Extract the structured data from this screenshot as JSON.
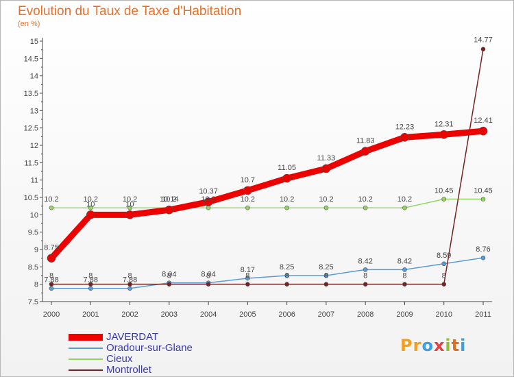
{
  "chart_data": {
    "type": "line",
    "title": "Evolution du Taux de Taxe d'Habitation",
    "subtitle": "(en %)",
    "x": [
      "2000",
      "2001",
      "2002",
      "2003",
      "2004",
      "2005",
      "2006",
      "2007",
      "2008",
      "2009",
      "2010",
      "2011"
    ],
    "yticks": [
      "7.5",
      "8",
      "8.5",
      "9",
      "9.5",
      "10",
      "10.5",
      "11",
      "11.5",
      "12",
      "12.5",
      "13",
      "13.5",
      "14",
      "14.5",
      "15"
    ],
    "ylim": [
      7.5,
      15
    ],
    "grid": false,
    "legend": "bottom-left",
    "series": [
      {
        "name": "JAVERDAT",
        "color": "#ee0000",
        "values": [
          8.75,
          10.0,
          10.0,
          10.14,
          10.37,
          10.7,
          11.05,
          11.33,
          11.83,
          12.23,
          12.31,
          12.41
        ],
        "labels": [
          "8.75",
          "10",
          "10",
          "10.14",
          "10.37",
          "10.7",
          "11.05",
          "11.33",
          "11.83",
          "12.23",
          "12.31",
          "12.41"
        ]
      },
      {
        "name": "Oradour-sur-Glane",
        "color": "#5b9bd5",
        "values": [
          7.88,
          7.88,
          7.88,
          8.04,
          8.04,
          8.17,
          8.25,
          8.25,
          8.42,
          8.42,
          8.59,
          8.76
        ],
        "labels": [
          "7.88",
          "7.88",
          "7.88",
          "8.04",
          "8.04",
          "8.17",
          "8.25",
          "8.25",
          "8.42",
          "8.42",
          "8.59",
          "8.76"
        ]
      },
      {
        "name": "Cieux",
        "color": "#8fd65a",
        "values": [
          10.2,
          10.2,
          10.2,
          10.2,
          10.2,
          10.2,
          10.2,
          10.2,
          10.2,
          10.2,
          10.45,
          10.45
        ],
        "labels": [
          "10.2",
          "10.2",
          "10.2",
          "10.2",
          "10.2",
          "10.2",
          "10.2",
          "10.2",
          "10.2",
          "10.2",
          "10.45",
          "10.45"
        ]
      },
      {
        "name": "Montrollet",
        "color": "#7a2020",
        "values": [
          8,
          8,
          8,
          8,
          8,
          8,
          8,
          8,
          8,
          8,
          8,
          14.77
        ],
        "labels": [
          "8",
          "8",
          "8",
          "8",
          "8",
          "8",
          "8",
          "8",
          "8",
          "8",
          "8",
          "14.77"
        ]
      }
    ]
  },
  "logo": {
    "letters": [
      "P",
      "r",
      "o",
      "x",
      "i",
      "t",
      "i"
    ],
    "colors": [
      "#f0a020",
      "#f0a020",
      "#3aa0e0",
      "#e04040",
      "#90c030",
      "#e07020",
      "#3aa0e0"
    ]
  }
}
